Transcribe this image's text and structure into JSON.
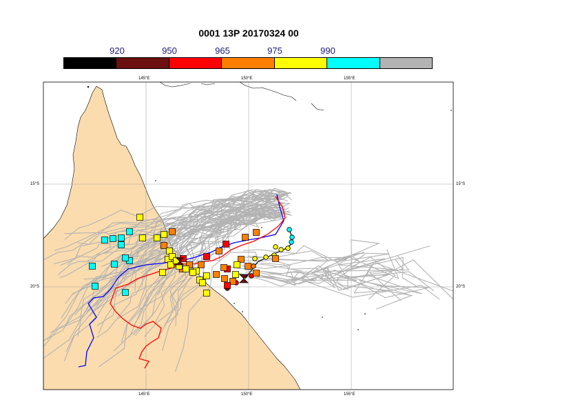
{
  "title": "0001 13P 20170324 00",
  "colorbar": {
    "labels": [
      "920",
      "950",
      "965",
      "975",
      "990"
    ],
    "colors": [
      "#000000",
      "#6b0f0f",
      "#ff0000",
      "#ff8000",
      "#ffff00",
      "#00ffff",
      "#b3b3b3"
    ]
  },
  "axes": {
    "top_lon": [
      "145°E",
      "150°E",
      "155°E"
    ],
    "bottom_lon": [
      "145°E",
      "150°E",
      "155°E"
    ],
    "left_lat": [
      "15°S",
      "20°S"
    ],
    "right_lat": [
      "15°S",
      "20°S"
    ]
  },
  "colors": {
    "land": "#fbdcae",
    "ocean": "#ffffff",
    "ensemble_track": "#b3b3b3",
    "track_1": "#0000ff",
    "track_2": "#ff0000",
    "observed_track": "#000000",
    "grid": "#a6a6a6"
  },
  "map": {
    "type": "cyclone ensemble track forecast",
    "lon_range": [
      141,
      161
    ],
    "lat_range": [
      -10,
      -25
    ],
    "projection": "cylindrical equidistant",
    "grid": true
  }
}
